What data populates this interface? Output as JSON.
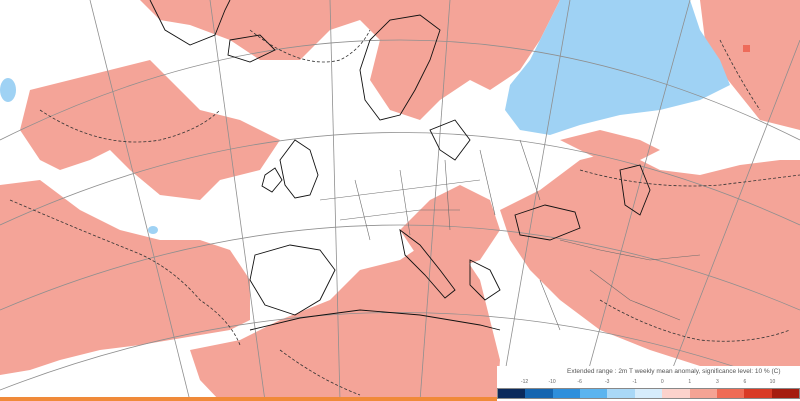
{
  "legend": {
    "title": "Extended range : 2m T weekly mean anomaly, significance level: 10 % (C)",
    "ticks": [
      "-12",
      "-10",
      "-6",
      "-3",
      "-1",
      "0",
      "1",
      "3",
      "6",
      "10"
    ],
    "colors": [
      "#0b2a5c",
      "#1565b0",
      "#2e8fdc",
      "#5bb4ef",
      "#a9d8f7",
      "#d6ecfb",
      "#fbd2cc",
      "#f5a394",
      "#ef6b55",
      "#d93a25",
      "#a51c0f"
    ]
  },
  "map": {
    "warm_color": "#f4a498",
    "cool_color": "#9fd2f4",
    "strong_warm_color": "#ee6b5a",
    "land_color": "#ffffff"
  }
}
